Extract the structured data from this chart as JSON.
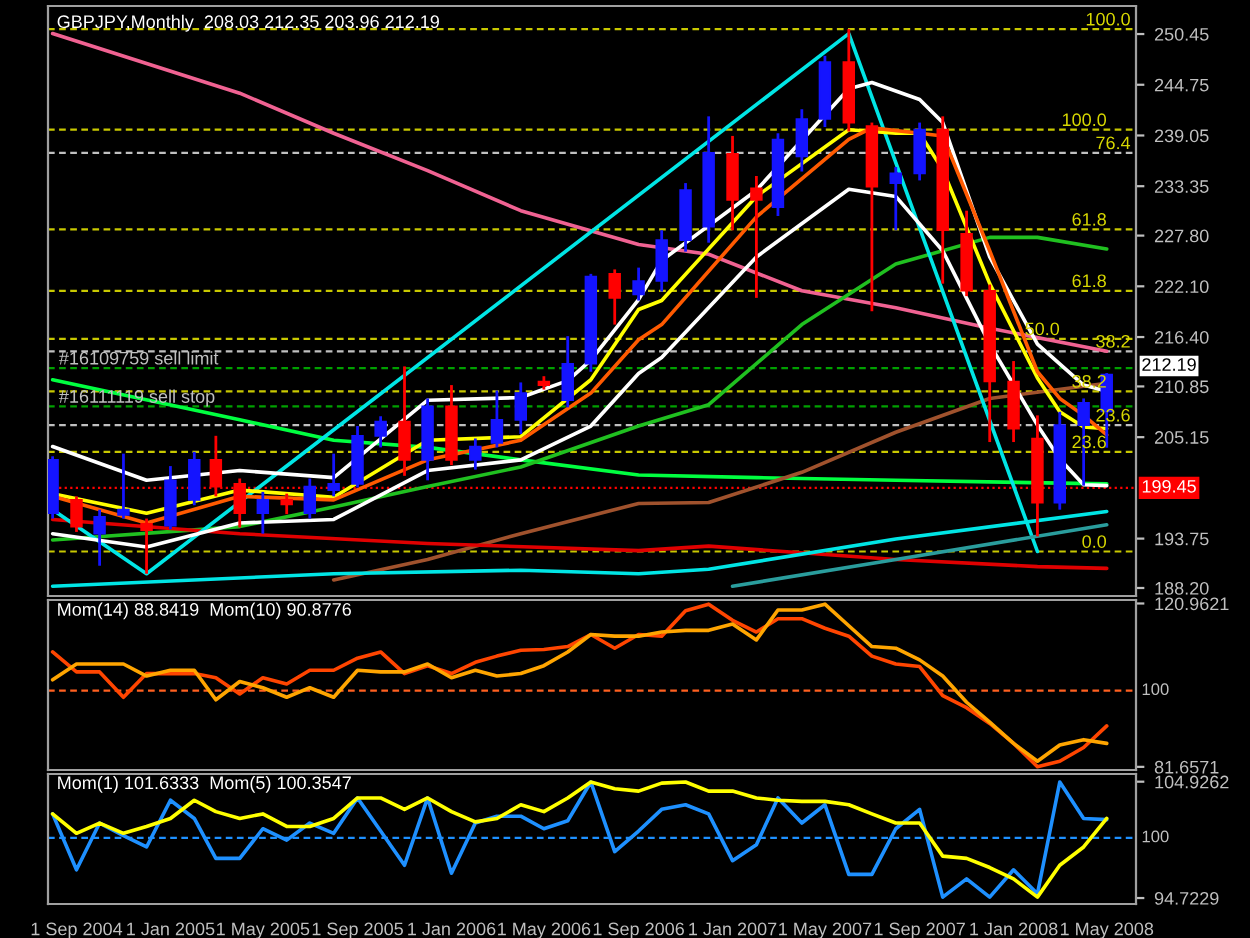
{
  "chart_data": [
    {
      "type": "candlestick",
      "title": "GBPJPY,Monthly  208.03 212.35 203.96 212.19",
      "x": [
        "2004-08",
        "2004-09",
        "2004-10",
        "2004-11",
        "2004-12",
        "2005-01",
        "2005-02",
        "2005-03",
        "2005-04",
        "2005-05",
        "2005-06",
        "2005-07",
        "2005-08",
        "2005-09",
        "2005-10",
        "2005-11",
        "2005-12",
        "2006-01",
        "2006-02",
        "2006-03",
        "2006-04",
        "2006-05",
        "2006-06",
        "2006-07",
        "2006-08",
        "2006-09",
        "2006-10",
        "2006-11",
        "2006-12",
        "2007-01",
        "2007-02",
        "2007-03",
        "2007-04",
        "2007-05",
        "2007-06",
        "2007-07",
        "2007-08",
        "2007-09",
        "2007-10",
        "2007-11",
        "2007-12",
        "2008-01",
        "2008-02",
        "2008-03",
        "2008-04",
        "2008-05"
      ],
      "ohlc": [
        [
          196.6,
          203,
          196,
          202.6
        ],
        [
          198.1,
          198.5,
          194.5,
          195.1
        ],
        [
          194.3,
          197,
          190.7,
          196.2
        ],
        [
          196.4,
          203.3,
          196,
          197
        ],
        [
          195.4,
          196,
          189.8,
          194.7
        ],
        [
          195.2,
          201.9,
          194.8,
          200.3
        ],
        [
          198.1,
          203.5,
          197.5,
          202.6
        ],
        [
          202.6,
          205.3,
          198.5,
          199.6
        ],
        [
          199.9,
          200.5,
          195,
          196.6
        ],
        [
          196.6,
          199,
          194.3,
          198.1
        ],
        [
          198.1,
          198.8,
          196.5,
          197.6
        ],
        [
          196.6,
          200.5,
          196,
          199.6
        ],
        [
          199.2,
          203.3,
          198.5,
          199.9
        ],
        [
          199.9,
          206.4,
          199.5,
          205.3
        ],
        [
          205.3,
          207.5,
          204,
          206.9
        ],
        [
          206.9,
          213.1,
          200.8,
          202.6
        ],
        [
          202.6,
          209.5,
          200.3,
          208.6
        ],
        [
          208.6,
          211,
          202,
          202.6
        ],
        [
          202.6,
          205,
          201.5,
          204.1
        ],
        [
          204.5,
          210.4,
          204,
          207.1
        ],
        [
          207.1,
          211.3,
          205.5,
          210.1
        ],
        [
          211.4,
          212,
          210.5,
          211
        ],
        [
          209.3,
          216.5,
          208.5,
          213.4
        ],
        [
          213.4,
          223.5,
          212.5,
          223.2
        ],
        [
          223.5,
          224,
          217.8,
          220.8
        ],
        [
          221.2,
          224.2,
          220.5,
          222.7
        ],
        [
          222.7,
          228.4,
          221.5,
          227.3
        ],
        [
          227.3,
          233.7,
          226,
          232.9
        ],
        [
          228.8,
          241.2,
          227,
          237.1
        ],
        [
          237,
          239,
          228.4,
          231.8
        ],
        [
          233.1,
          234.5,
          220.8,
          231.8
        ],
        [
          231,
          239.3,
          230,
          238.6
        ],
        [
          236.7,
          242,
          235,
          240.9
        ],
        [
          240.9,
          248,
          240,
          247.3
        ],
        [
          247.3,
          251,
          239.5,
          240.5
        ],
        [
          240.1,
          240.5,
          219.3,
          233.3
        ],
        [
          233.7,
          235.5,
          228.4,
          234.8
        ],
        [
          234.8,
          240.5,
          234,
          239.7
        ],
        [
          239.7,
          241.2,
          222.4,
          228.4
        ],
        [
          228,
          230.6,
          221,
          221.6
        ],
        [
          221.6,
          222.3,
          204.6,
          211.4
        ],
        [
          211.4,
          213.7,
          204.6,
          206.1
        ],
        [
          205,
          207.6,
          194,
          197.8
        ],
        [
          197.8,
          208,
          197,
          206.5
        ],
        [
          206.5,
          209.5,
          199.7,
          209
        ],
        [
          208.03,
          212.35,
          203.96,
          212.19
        ]
      ],
      "colors": [
        "#1414ff",
        "#ff0000",
        "#1414ff",
        "#1414ff",
        "#ff0000",
        "#1414ff",
        "#1414ff",
        "#ff0000",
        "#ff0000",
        "#1414ff",
        "#ff0000",
        "#1414ff",
        "#1414ff",
        "#1414ff",
        "#1414ff",
        "#ff0000",
        "#1414ff",
        "#ff0000",
        "#1414ff",
        "#1414ff",
        "#1414ff",
        "#ff0000",
        "#1414ff",
        "#1414ff",
        "#ff0000",
        "#1414ff",
        "#1414ff",
        "#1414ff",
        "#1414ff",
        "#ff0000",
        "#ff0000",
        "#1414ff",
        "#1414ff",
        "#1414ff",
        "#ff0000",
        "#ff0000",
        "#1414ff",
        "#1414ff",
        "#ff0000",
        "#ff0000",
        "#ff0000",
        "#ff0000",
        "#ff0000",
        "#1414ff",
        "#1414ff",
        "#1414ff"
      ],
      "series": [
        {
          "type": "line",
          "color": "#f06292",
          "x": [
            "2004-08",
            "2005-04",
            "2005-08",
            "2005-12",
            "2006-04",
            "2006-09",
            "2006-12",
            "2007-04",
            "2007-08",
            "2007-12",
            "2008-05"
          ],
          "values": [
            250.5,
            243.8,
            239.3,
            235.1,
            230.6,
            226.8,
            225.7,
            221.6,
            219.7,
            217.4,
            214.8
          ]
        },
        {
          "type": "line",
          "color": "#00ff40",
          "x": [
            "2004-08",
            "2005-04",
            "2005-08",
            "2005-12",
            "2006-04",
            "2006-09",
            "2007-02",
            "2007-08",
            "2008-05"
          ],
          "values": [
            211.6,
            207.1,
            204.8,
            204.0,
            202.6,
            200.9,
            200.6,
            200.3,
            199.9
          ]
        },
        {
          "type": "line",
          "color": "#20c020",
          "x": [
            "2004-08",
            "2005-04",
            "2005-08",
            "2005-12",
            "2006-04",
            "2006-09",
            "2006-12",
            "2007-04",
            "2007-08",
            "2007-12",
            "2008-02",
            "2008-05"
          ],
          "values": [
            193.6,
            195.1,
            197.3,
            199.6,
            201.8,
            206.4,
            208.8,
            217.8,
            224.6,
            227.6,
            227.6,
            226.3
          ]
        },
        {
          "type": "line",
          "color": "#a0522d",
          "x": [
            "2005-08",
            "2005-12",
            "2006-04",
            "2006-09",
            "2006-12",
            "2007-04",
            "2007-08",
            "2007-12",
            "2008-05"
          ],
          "values": [
            189.1,
            191.4,
            194.3,
            197.7,
            197.8,
            201.2,
            205.7,
            209.5,
            211.2
          ]
        },
        {
          "type": "line",
          "color": "#e00000",
          "x": [
            "2004-08",
            "2005-04",
            "2005-12",
            "2006-09",
            "2006-12",
            "2007-08",
            "2008-02",
            "2008-05"
          ],
          "values": [
            195.9,
            194.3,
            193.2,
            192.4,
            192.9,
            191.4,
            190.6,
            190.4
          ]
        },
        {
          "type": "line",
          "color": "#00e5e5",
          "x": [
            "2004-08",
            "2004-12",
            "2007-06",
            "2008-02"
          ],
          "values": [
            197.0,
            189.8,
            250.5,
            192.3
          ]
        },
        {
          "type": "line",
          "color": "#00e5e5",
          "x": [
            "2004-08",
            "2005-08",
            "2006-04",
            "2006-09",
            "2006-12",
            "2007-08",
            "2008-05"
          ],
          "values": [
            188.4,
            189.8,
            190.2,
            189.8,
            190.3,
            193.7,
            196.8
          ]
        },
        {
          "type": "line",
          "color": "#2a9d9d",
          "x": [
            "2007-01",
            "2007-08",
            "2008-05"
          ],
          "values": [
            188.4,
            191.4,
            195.3
          ]
        },
        {
          "type": "line",
          "color": "#ffffff",
          "x": [
            "2004-08",
            "2004-12",
            "2005-04",
            "2005-08",
            "2005-12",
            "2006-04",
            "2006-06",
            "2006-07",
            "2006-09",
            "2006-10",
            "2007-02",
            "2007-06",
            "2007-07",
            "2007-09",
            "2007-10",
            "2007-12",
            "2008-02",
            "2008-04",
            "2008-05"
          ],
          "values": [
            204.1,
            200.3,
            201.4,
            200.6,
            209.3,
            209.6,
            211.5,
            213.8,
            220.6,
            225.0,
            232.9,
            244.3,
            245.0,
            243.1,
            240.5,
            225.4,
            215.6,
            211.0,
            210.3
          ]
        },
        {
          "type": "line",
          "color": "#ffffff",
          "x": [
            "2004-08",
            "2004-12",
            "2005-04",
            "2005-08",
            "2005-12",
            "2006-04",
            "2006-07",
            "2006-09",
            "2006-10",
            "2007-02",
            "2007-06",
            "2007-08",
            "2007-10",
            "2007-12",
            "2008-02",
            "2008-03",
            "2008-04",
            "2008-05"
          ],
          "values": [
            194.3,
            192.8,
            195.5,
            195.9,
            201.4,
            202.6,
            206.4,
            212.3,
            214.1,
            225.4,
            233.0,
            232.2,
            226.1,
            215.6,
            206.5,
            202.7,
            199.8,
            199.7
          ]
        },
        {
          "type": "line",
          "color": "#ffff00",
          "x": [
            "2004-08",
            "2004-12",
            "2005-04",
            "2005-08",
            "2005-12",
            "2006-04",
            "2006-07",
            "2006-09",
            "2006-10",
            "2007-02",
            "2007-06",
            "2007-08",
            "2007-09",
            "2007-10",
            "2007-12",
            "2008-02",
            "2008-03",
            "2008-04",
            "2008-05"
          ],
          "values": [
            198.8,
            196.6,
            199.2,
            198.4,
            204.8,
            205.2,
            211.6,
            219.5,
            220.5,
            232.2,
            239.7,
            239.3,
            239.3,
            235.2,
            222.4,
            211.8,
            208.0,
            206.3,
            206.1
          ]
        },
        {
          "type": "line",
          "color": "#ff5a00",
          "x": [
            "2004-08",
            "2004-12",
            "2005-04",
            "2005-08",
            "2005-12",
            "2006-04",
            "2006-07",
            "2006-09",
            "2006-10",
            "2007-02",
            "2007-06",
            "2007-07",
            "2007-09",
            "2007-10",
            "2007-12",
            "2008-02",
            "2008-03",
            "2008-04",
            "2008-05"
          ],
          "values": [
            198.5,
            195.5,
            198.5,
            198.1,
            202.6,
            204.8,
            210.1,
            216.1,
            217.8,
            229.9,
            238.6,
            239.9,
            239.3,
            239.0,
            226.1,
            212.5,
            209.5,
            207.6,
            205.4
          ]
        }
      ],
      "xlim": [
        "2004-07-26",
        "2008-06-08"
      ],
      "ylim": [
        187.3,
        253.6
      ],
      "yticks": [
        {
          "value": 188.2,
          "label": "188.20"
        },
        193.75,
        {
          "value": 205.15,
          "label": "205.15"
        },
        210.85,
        {
          "value": 216.4,
          "label": "216.40"
        },
        {
          "value": 222.1,
          "label": "222.10"
        },
        {
          "value": 227.8,
          "label": "227.80"
        },
        233.35,
        239.05,
        244.75,
        250.45
      ],
      "tick_labels": "y",
      "ref_lines": [
        {
          "axis": "y",
          "value": 251.0,
          "color": "#c8c800",
          "line_style": "dashed"
        },
        {
          "axis": "y",
          "value": 239.7,
          "color": "#c8c800",
          "line_style": "dashed"
        },
        {
          "axis": "y",
          "value": 237.1,
          "color": "#c0c0c0",
          "line_style": "dashed"
        },
        {
          "axis": "y",
          "value": 228.5,
          "color": "#c8c800",
          "line_style": "dashed"
        },
        {
          "axis": "y",
          "value": 221.6,
          "color": "#c8c800",
          "line_style": "dashed"
        },
        {
          "axis": "y",
          "value": 216.2,
          "color": "#c8c800",
          "line_style": "dashed"
        },
        {
          "axis": "y",
          "value": 214.8,
          "color": "#c0c0c0",
          "line_style": "dashed"
        },
        {
          "axis": "y",
          "value": 210.3,
          "color": "#c8c800",
          "line_style": "dashed"
        },
        {
          "axis": "y",
          "value": 206.5,
          "color": "#c0c0c0",
          "line_style": "dashed"
        },
        {
          "axis": "y",
          "value": 203.5,
          "color": "#c8c800",
          "line_style": "dashed"
        },
        {
          "axis": "y",
          "value": 192.3,
          "color": "#c8c800",
          "line_style": "dashed"
        },
        {
          "axis": "y",
          "value": 212.9,
          "label": "#16109759 sell limit",
          "color": "#00a000",
          "line_style": "dashed"
        },
        {
          "axis": "y",
          "value": 208.6,
          "label": "#16111119 sell stop",
          "color": "#00a000",
          "line_style": "dashed"
        },
        {
          "axis": "y",
          "value": 199.45,
          "label": "199.45",
          "color": "#ff0000",
          "line_style": "dotted"
        }
      ],
      "annotations": [
        {
          "text": "100.0",
          "x": "2008-06",
          "y": 251.0
        },
        {
          "text": "100.0",
          "x": "2008-05",
          "y": 239.7
        },
        {
          "text": "76.4",
          "x": "2008-06",
          "y": 237.1
        },
        {
          "text": "61.8",
          "x": "2008-05",
          "y": 228.5
        },
        {
          "text": "61.8",
          "x": "2008-05",
          "y": 221.6
        },
        {
          "text": "50.0",
          "x": "2008-03",
          "y": 216.2
        },
        {
          "text": "38.2",
          "x": "2008-06",
          "y": 214.8
        },
        {
          "text": "38.2",
          "x": "2008-05",
          "y": 210.3
        },
        {
          "text": "23.6",
          "x": "2008-06",
          "y": 206.5
        },
        {
          "text": "23.6",
          "x": "2008-05",
          "y": 203.5
        },
        {
          "text": "0.0",
          "x": "2008-05",
          "y": 192.3
        },
        {
          "text": "212.19",
          "x": "2008-05",
          "y": 212.19
        }
      ]
    },
    {
      "type": "line",
      "title": "Mom(14) 88.8419  Mom(10) 90.8776",
      "x": [
        "2004-08",
        "2004-09",
        "2004-10",
        "2004-11",
        "2004-12",
        "2005-01",
        "2005-02",
        "2005-03",
        "2005-04",
        "2005-05",
        "2005-06",
        "2005-07",
        "2005-08",
        "2005-09",
        "2005-10",
        "2005-11",
        "2005-12",
        "2006-01",
        "2006-02",
        "2006-03",
        "2006-04",
        "2006-05",
        "2006-06",
        "2006-07",
        "2006-08",
        "2006-09",
        "2006-10",
        "2006-11",
        "2006-12",
        "2007-01",
        "2007-02",
        "2007-03",
        "2007-04",
        "2007-05",
        "2007-06",
        "2007-07",
        "2007-08",
        "2007-09",
        "2007-10",
        "2007-11",
        "2007-12",
        "2008-01",
        "2008-02",
        "2008-03",
        "2008-04",
        "2008-05"
      ],
      "series": [
        {
          "color": "#ff4500",
          "values": [
            109.3,
            104.5,
            104.5,
            98.4,
            104.1,
            104.1,
            104.1,
            103.1,
            99.2,
            103.1,
            101.6,
            104.9,
            104.9,
            107.8,
            109.3,
            104.1,
            106.0,
            104.1,
            106.8,
            108.3,
            109.7,
            109.9,
            110.6,
            113.5,
            110.2,
            113.5,
            113.1,
            119.2,
            120.8,
            116.9,
            114.1,
            117.3,
            117.3,
            115.0,
            113.1,
            108.3,
            106.4,
            105.8,
            98.8,
            95.9,
            92.1,
            87.3,
            81.7,
            83.0,
            86.3,
            91.5
          ]
        },
        {
          "color": "#ffa500",
          "values": [
            102.6,
            106.4,
            106.4,
            106.4,
            103.5,
            104.9,
            104.9,
            97.8,
            102.2,
            100.7,
            98.4,
            100.7,
            98.4,
            104.9,
            104.5,
            104.5,
            106.4,
            103.1,
            104.9,
            103.5,
            104.1,
            106.0,
            109.3,
            113.5,
            113.1,
            113.1,
            114.1,
            114.5,
            114.5,
            116.0,
            112.2,
            119.4,
            119.4,
            120.8,
            115.6,
            110.6,
            110.2,
            107.4,
            103.5,
            97.2,
            92.4,
            87.3,
            83.0,
            86.9,
            88.2,
            87.3
          ]
        }
      ],
      "xlim": [
        "2004-07-26",
        "2008-06-08"
      ],
      "ylim": [
        80.9,
        121.8
      ],
      "yticks": [
        81.6571,
        120.9621
      ],
      "tick_labels": "y",
      "ref_lines": [
        {
          "axis": "y",
          "value": 100,
          "label": "100",
          "color": "#ff6020",
          "line_style": "dashed"
        }
      ]
    },
    {
      "type": "line",
      "title": "Mom(1) 101.6333  Mom(5) 100.3547",
      "x": [
        "2004-08",
        "2004-09",
        "2004-10",
        "2004-11",
        "2004-12",
        "2005-01",
        "2005-02",
        "2005-03",
        "2005-04",
        "2005-05",
        "2005-06",
        "2005-07",
        "2005-08",
        "2005-09",
        "2005-10",
        "2005-11",
        "2005-12",
        "2006-01",
        "2006-02",
        "2006-03",
        "2006-04",
        "2006-05",
        "2006-06",
        "2006-07",
        "2006-08",
        "2006-09",
        "2006-10",
        "2006-11",
        "2006-12",
        "2007-01",
        "2007-02",
        "2007-03",
        "2007-04",
        "2007-05",
        "2007-06",
        "2007-07",
        "2007-08",
        "2007-09",
        "2007-10",
        "2007-11",
        "2007-12",
        "2008-01",
        "2008-02",
        "2008-03",
        "2008-04",
        "2008-05"
      ],
      "series": [
        {
          "color": "#1e90ff",
          "values": [
            102.1,
            97.2,
            101.3,
            100.2,
            99.2,
            103.3,
            101.7,
            98.2,
            98.2,
            100.8,
            99.8,
            101.3,
            100.4,
            103.5,
            100.6,
            97.6,
            103.5,
            96.9,
            101.3,
            101.9,
            101.9,
            100.8,
            101.5,
            104.9,
            98.8,
            100.6,
            102.5,
            102.9,
            102.1,
            98.0,
            99.4,
            103.5,
            101.3,
            102.9,
            96.8,
            96.8,
            100.8,
            102.5,
            94.8,
            96.4,
            94.8,
            97.2,
            95.1,
            104.9,
            101.7,
            101.6
          ]
        },
        {
          "color": "#ffff00",
          "values": [
            102.1,
            100.4,
            101.3,
            100.4,
            101.0,
            101.7,
            103.3,
            102.3,
            101.7,
            102.1,
            101.0,
            101.0,
            101.7,
            103.5,
            103.5,
            102.5,
            103.5,
            102.3,
            101.4,
            101.7,
            102.9,
            102.3,
            103.5,
            104.9,
            104.3,
            104.1,
            104.8,
            104.9,
            104.1,
            104.1,
            103.5,
            103.3,
            103.2,
            103.2,
            102.9,
            102.1,
            101.3,
            101.3,
            98.4,
            98.2,
            97.4,
            96.4,
            94.8,
            97.6,
            99.2,
            101.7
          ]
        }
      ],
      "xlim": [
        "2004-07-26",
        "2008-06-08"
      ],
      "ylim": [
        94.2,
        105.6
      ],
      "yticks": [
        94.7229,
        104.9262
      ],
      "xticks": [
        {
          "value": "2004-09",
          "label": "1 Sep 2004"
        },
        {
          "value": "2005-01",
          "label": "1 Jan 2005"
        },
        {
          "value": "2005-05",
          "label": "1 May 2005"
        },
        {
          "value": "2005-09",
          "label": "1 Sep 2005"
        },
        {
          "value": "2006-01",
          "label": "1 Jan 2006"
        },
        {
          "value": "2006-05",
          "label": "1 May 2006"
        },
        {
          "value": "2006-09",
          "label": "1 Sep 2006"
        },
        {
          "value": "2007-01",
          "label": "1 Jan 2007"
        },
        {
          "value": "2007-05",
          "label": "1 May 2007"
        },
        {
          "value": "2007-09",
          "label": "1 Sep 2007"
        },
        {
          "value": "2008-01",
          "label": "1 Jan 2008"
        },
        {
          "value": "2008-05",
          "label": "1 May 2008"
        }
      ],
      "ref_lines": [
        {
          "axis": "y",
          "value": 100,
          "label": "100",
          "color": "#1e90ff",
          "line_style": "dashed"
        }
      ]
    }
  ]
}
